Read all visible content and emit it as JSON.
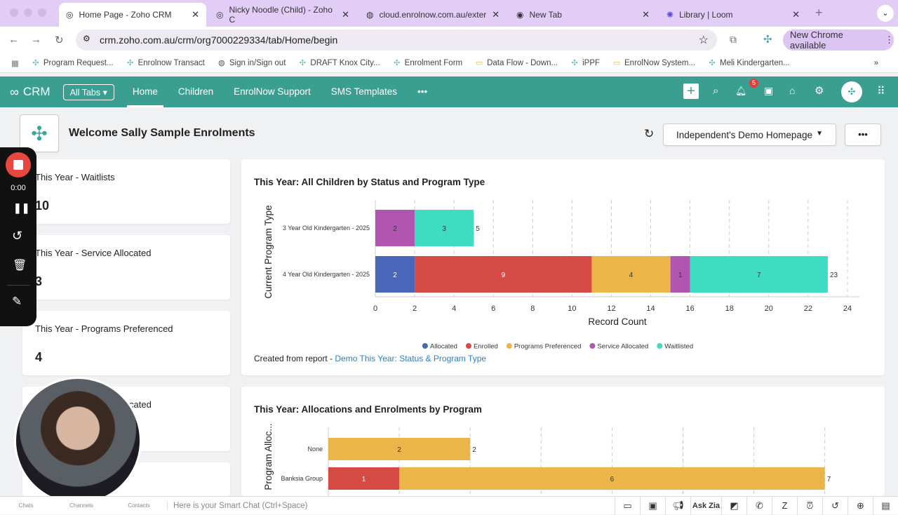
{
  "browser": {
    "tabs": [
      {
        "title": "Home Page - Zoho CRM",
        "active": true
      },
      {
        "title": "Nicky Noodle (Child) - Zoho C"
      },
      {
        "title": "cloud.enrolnow.com.au/exter"
      },
      {
        "title": "New Tab"
      },
      {
        "title": "Library | Loom"
      }
    ],
    "url": "crm.zoho.com.au/crm/org7000229334/tab/Home/begin",
    "new_chrome": "New Chrome available",
    "bookmarks": [
      "Program Request...",
      "Enrolnow Transact",
      "Sign in/Sign out",
      "DRAFT Knox City...",
      "Enrolment Form",
      "Data Flow - Down...",
      "iPPF",
      "EnrolNow System...",
      "Meli Kindergarten..."
    ]
  },
  "crm": {
    "logo": "CRM",
    "all_tabs": "All Tabs",
    "nav": [
      "Home",
      "Children",
      "EnrolNow Support",
      "SMS Templates"
    ],
    "more": "•••",
    "notif_count": "5",
    "welcome": "Welcome Sally Sample Enrolments",
    "homepage_select": "Independent's Demo Homepage",
    "more_button": "•••"
  },
  "kpis": [
    {
      "label": "This Year - Waitlists",
      "value": "10"
    },
    {
      "label": "This Year - Service Allocated",
      "value": "3"
    },
    {
      "label": "This Year - Programs Preferenced",
      "value": "4"
    },
    {
      "label": "cated",
      "value": ""
    }
  ],
  "loom": {
    "time": "0:00"
  },
  "colors": {
    "Allocated": "#4a66b8",
    "Enrolled": "#d64a44",
    "Programs Preferenced": "#ebb54a",
    "Service Allocated": "#b255b0",
    "Waitlisted": "#3fdcc4",
    "teal": "#3a9f91"
  },
  "chart_data": [
    {
      "type": "bar",
      "orientation": "horizontal",
      "stacked": true,
      "title": "This Year: All Children by Status and Program Type",
      "xlabel": "Record Count",
      "ylabel": "Current Program Type",
      "xlim": [
        0,
        24
      ],
      "xticks": [
        0,
        2,
        4,
        6,
        8,
        10,
        12,
        14,
        16,
        18,
        20,
        22,
        24
      ],
      "categories": [
        "3 Year Old Kindergarten - 2025",
        "4 Year Old Kindergarten - 2025"
      ],
      "series": [
        {
          "name": "Allocated",
          "values": [
            0,
            2
          ]
        },
        {
          "name": "Enrolled",
          "values": [
            0,
            9
          ]
        },
        {
          "name": "Programs Preferenced",
          "values": [
            0,
            4
          ]
        },
        {
          "name": "Service Allocated",
          "values": [
            2,
            1
          ]
        },
        {
          "name": "Waitlisted",
          "values": [
            3,
            7
          ]
        }
      ],
      "totals": [
        5,
        23
      ],
      "legend": "bottom",
      "footer": "Created from report - ",
      "report_link": "Demo This Year: Status & Program Type"
    },
    {
      "type": "bar",
      "orientation": "horizontal",
      "stacked": true,
      "title": "This Year: Allocations and Enrolments by Program",
      "ylabel": "Program Alloc...",
      "categories": [
        "None",
        "Banksia Group"
      ],
      "series": [
        {
          "name": "Enrolled",
          "values": [
            0,
            1
          ]
        },
        {
          "name": "Programs Preferenced",
          "values": [
            2,
            6
          ]
        }
      ],
      "totals": [
        2,
        7
      ]
    }
  ],
  "bottom": {
    "items": [
      "Chats",
      "Channels",
      "Contacts"
    ],
    "chat_placeholder": "Here is your Smart Chat (Ctrl+Space)",
    "ask_zia": "Ask Zia"
  }
}
